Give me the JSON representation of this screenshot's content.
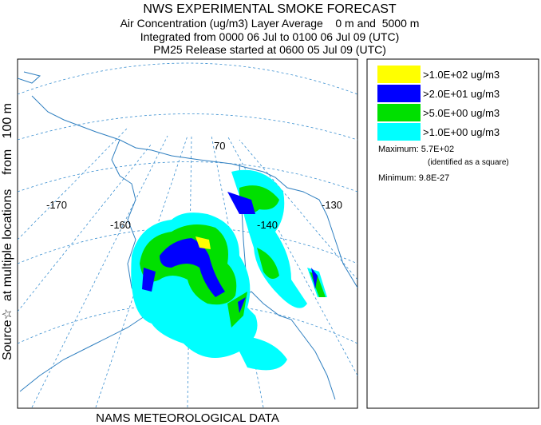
{
  "header": {
    "title": "NWS EXPERIMENTAL SMOKE FORECAST",
    "lines": [
      "Air Concentration (ug/m3) Layer Average    0 m and  5000 m",
      "Integrated from 0000 06 Jul to 0100 06 Jul 09 (UTC)",
      "PM25 Release started at 0600 05 Jul 09 (UTC)"
    ]
  },
  "side_label": "Source☆  at multiple locations    from   100 m",
  "legend": {
    "items": [
      {
        "label": ">1.0E+02 ug/m3",
        "color": "#ffff00"
      },
      {
        "label": ">2.0E+01 ug/m3",
        "color": "#0000ff"
      },
      {
        "label": ">5.0E+00 ug/m3",
        "color": "#00e000"
      },
      {
        "label": ">1.0E+00 ug/m3",
        "color": "#00ffff"
      }
    ],
    "maximum": "Maximum: 5.7E+02",
    "maximum_note": "(identified as a square)",
    "minimum": "Minimum: 9.8E-27"
  },
  "map": {
    "labels": [
      "-170",
      "-160",
      "-140",
      "-130",
      "70"
    ]
  },
  "footer": "NAMS METEOROLOGICAL DATA"
}
